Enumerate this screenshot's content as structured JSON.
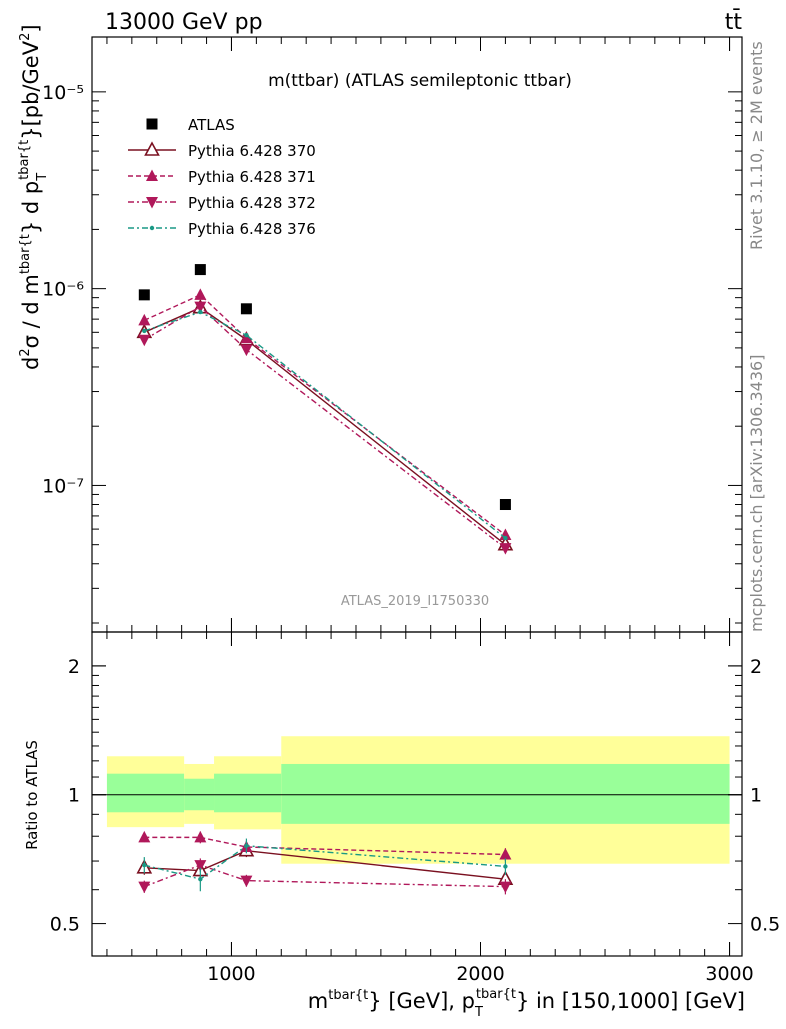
{
  "header": {
    "energy": "13000 GeV pp",
    "process": "tt̄",
    "side_right_top": "Rivet 3.1.10, ≥ 2M events",
    "side_right_bottom": "mcplots.cern.ch [arXiv:1306.3436]"
  },
  "chart_data": [
    {
      "type": "scatter",
      "title": "m(ttbar) (ATLAS semileptonic ttbar)",
      "watermark": "ATLAS_2019_I1750330",
      "ylabel": "d²σ / d m^{tbar{t}} d p_T^{tbar{t}} [pb/GeV²]",
      "yscale": "log",
      "ylim": [
        1.8e-08,
        1.9e-05
      ],
      "xlim": [
        440,
        3050
      ],
      "ytick_labels": [
        "10⁻⁷",
        "10⁻⁶",
        "10⁻⁵"
      ],
      "legend_position": "top-left",
      "series": [
        {
          "name": "ATLAS",
          "color": "#000000",
          "marker": "square",
          "line": "none",
          "x": [
            650,
            875,
            1060,
            2100
          ],
          "y": [
            9.3e-07,
            1.25e-06,
            7.9e-07,
            8e-08
          ]
        },
        {
          "name": "Pythia 6.428 370",
          "color": "#7a1020",
          "marker": "open-triangle-up",
          "line": "solid",
          "x": [
            650,
            875,
            1060,
            2100
          ],
          "y": [
            6e-07,
            8e-07,
            5.5e-07,
            5e-08
          ]
        },
        {
          "name": "Pythia 6.428 371",
          "color": "#b0185a",
          "marker": "filled-triangle-up",
          "line": "dashed",
          "x": [
            650,
            875,
            1060,
            2100
          ],
          "y": [
            6.9e-07,
            9.3e-07,
            5.6e-07,
            5.6e-08
          ]
        },
        {
          "name": "Pythia 6.428 372",
          "color": "#b0185a",
          "marker": "filled-triangle-down",
          "line": "dashdot",
          "x": [
            650,
            875,
            1060,
            2100
          ],
          "y": [
            5.5e-07,
            8.1e-07,
            4.9e-07,
            4.8e-08
          ]
        },
        {
          "name": "Pythia 6.428 376",
          "color": "#1a9985",
          "marker": "dot",
          "line": "dashdot",
          "x": [
            650,
            875,
            1060,
            2100
          ],
          "y": [
            6.1e-07,
            7.6e-07,
            5.8e-07,
            5.4e-08
          ]
        }
      ]
    },
    {
      "type": "scatter",
      "ylabel": "Ratio to ATLAS",
      "xlabel": "m^{tbar{t}} [GeV], p_T^{tbar{t}} in [150,1000] [GeV]",
      "yscale": "log",
      "ylim": [
        0.42,
        2.4
      ],
      "xlim": [
        440,
        3050
      ],
      "ytick_labels": [
        "0.5",
        "1",
        "2"
      ],
      "xtick_labels": [
        "1000",
        "2000",
        "3000"
      ],
      "reference_line": 1,
      "uncertainty_bands": [
        {
          "x0": 500,
          "x1": 810,
          "yellow": [
            0.84,
            1.23
          ],
          "green": [
            0.91,
            1.12
          ]
        },
        {
          "x0": 810,
          "x1": 930,
          "yellow": [
            0.855,
            1.18
          ],
          "green": [
            0.92,
            1.09
          ]
        },
        {
          "x0": 930,
          "x1": 1200,
          "yellow": [
            0.83,
            1.23
          ],
          "green": [
            0.91,
            1.12
          ]
        },
        {
          "x0": 1200,
          "x1": 3000,
          "yellow": [
            0.69,
            1.37
          ],
          "green": [
            0.855,
            1.18
          ]
        }
      ],
      "series": [
        {
          "name": "Pythia 6.428 370",
          "x": [
            650,
            875,
            1060,
            2100
          ],
          "y": [
            0.675,
            0.665,
            0.74,
            0.635
          ],
          "err": [
            0.025,
            0.025,
            0.025,
            0.025
          ]
        },
        {
          "name": "Pythia 6.428 371",
          "x": [
            650,
            875,
            1060,
            2100
          ],
          "y": [
            0.795,
            0.795,
            0.755,
            0.725
          ],
          "err": [
            0.02,
            0.025,
            0.025,
            0.025
          ]
        },
        {
          "name": "Pythia 6.428 372",
          "x": [
            650,
            875,
            1060,
            2100
          ],
          "y": [
            0.61,
            0.685,
            0.63,
            0.61
          ],
          "err": [
            0.02,
            0.025,
            0.02,
            0.025
          ]
        },
        {
          "name": "Pythia 6.428 376",
          "x": [
            650,
            875,
            1060,
            2100
          ],
          "y": [
            0.685,
            0.635,
            0.76,
            0.68
          ],
          "err": [
            0.03,
            0.04,
            0.03,
            0.03
          ]
        }
      ]
    }
  ]
}
